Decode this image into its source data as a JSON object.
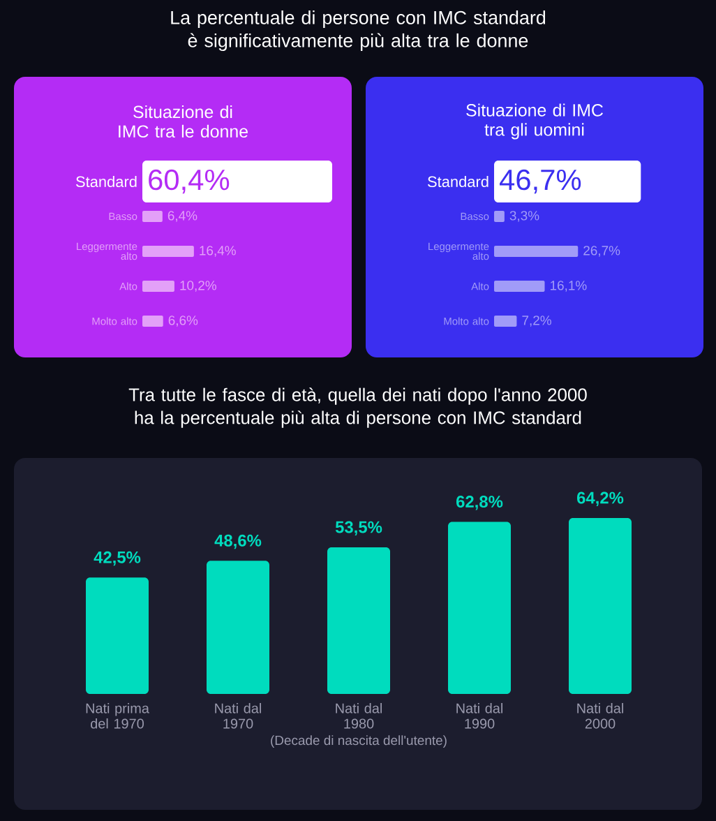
{
  "chart_data": [
    {
      "type": "other",
      "title": "La percentuale di persone con IMC standard è significativamente più alta tra le donne"
    },
    {
      "type": "bar",
      "orientation": "horizontal",
      "title": "Situazione di IMC tra le donne",
      "categories": [
        "Standard",
        "Basso",
        "Leggermente alto",
        "Alto",
        "Molto alto"
      ],
      "values": [
        60.4,
        6.4,
        16.4,
        10.2,
        6.6
      ],
      "colors": [
        "#ffffff",
        "#e3a0f8",
        "#e3a0f8",
        "#e3a0f8",
        "#e3a0f8"
      ],
      "value_labels": [
        "60,4%",
        "6,4%",
        "16,4%",
        "10,2%",
        "6,6%"
      ]
    },
    {
      "type": "bar",
      "orientation": "horizontal",
      "title": "Situazione di IMC tra gli uomini",
      "categories": [
        "Standard",
        "Basso",
        "Leggermente alto",
        "Alto",
        "Molto alto"
      ],
      "values": [
        46.7,
        3.3,
        26.7,
        16.1,
        7.2
      ],
      "colors": [
        "#ffffff",
        "#a19bf8",
        "#a19bf8",
        "#a19bf8",
        "#a19bf8"
      ],
      "value_labels": [
        "46,7%",
        "3,3%",
        "26,7%",
        "16,1%",
        "7,2%"
      ]
    },
    {
      "type": "bar",
      "title": "Tra tutte le fasce di età, quella dei nati dopo l'anno 2000 ha la percentuale più alta di persone con IMC standard",
      "xlabel": "(Decade di nascita dell'utente)",
      "categories": [
        "Nati prima del 1970",
        "Nati dal 1970",
        "Nati dal 1980",
        "Nati dal 1990",
        "Nati dal 2000"
      ],
      "values": [
        42.5,
        48.6,
        53.5,
        62.8,
        64.2
      ],
      "color": "#00dcbe",
      "value_labels": [
        "42,5%",
        "48,6%",
        "53,5%",
        "62,8%",
        "64,2%"
      ]
    }
  ]
}
